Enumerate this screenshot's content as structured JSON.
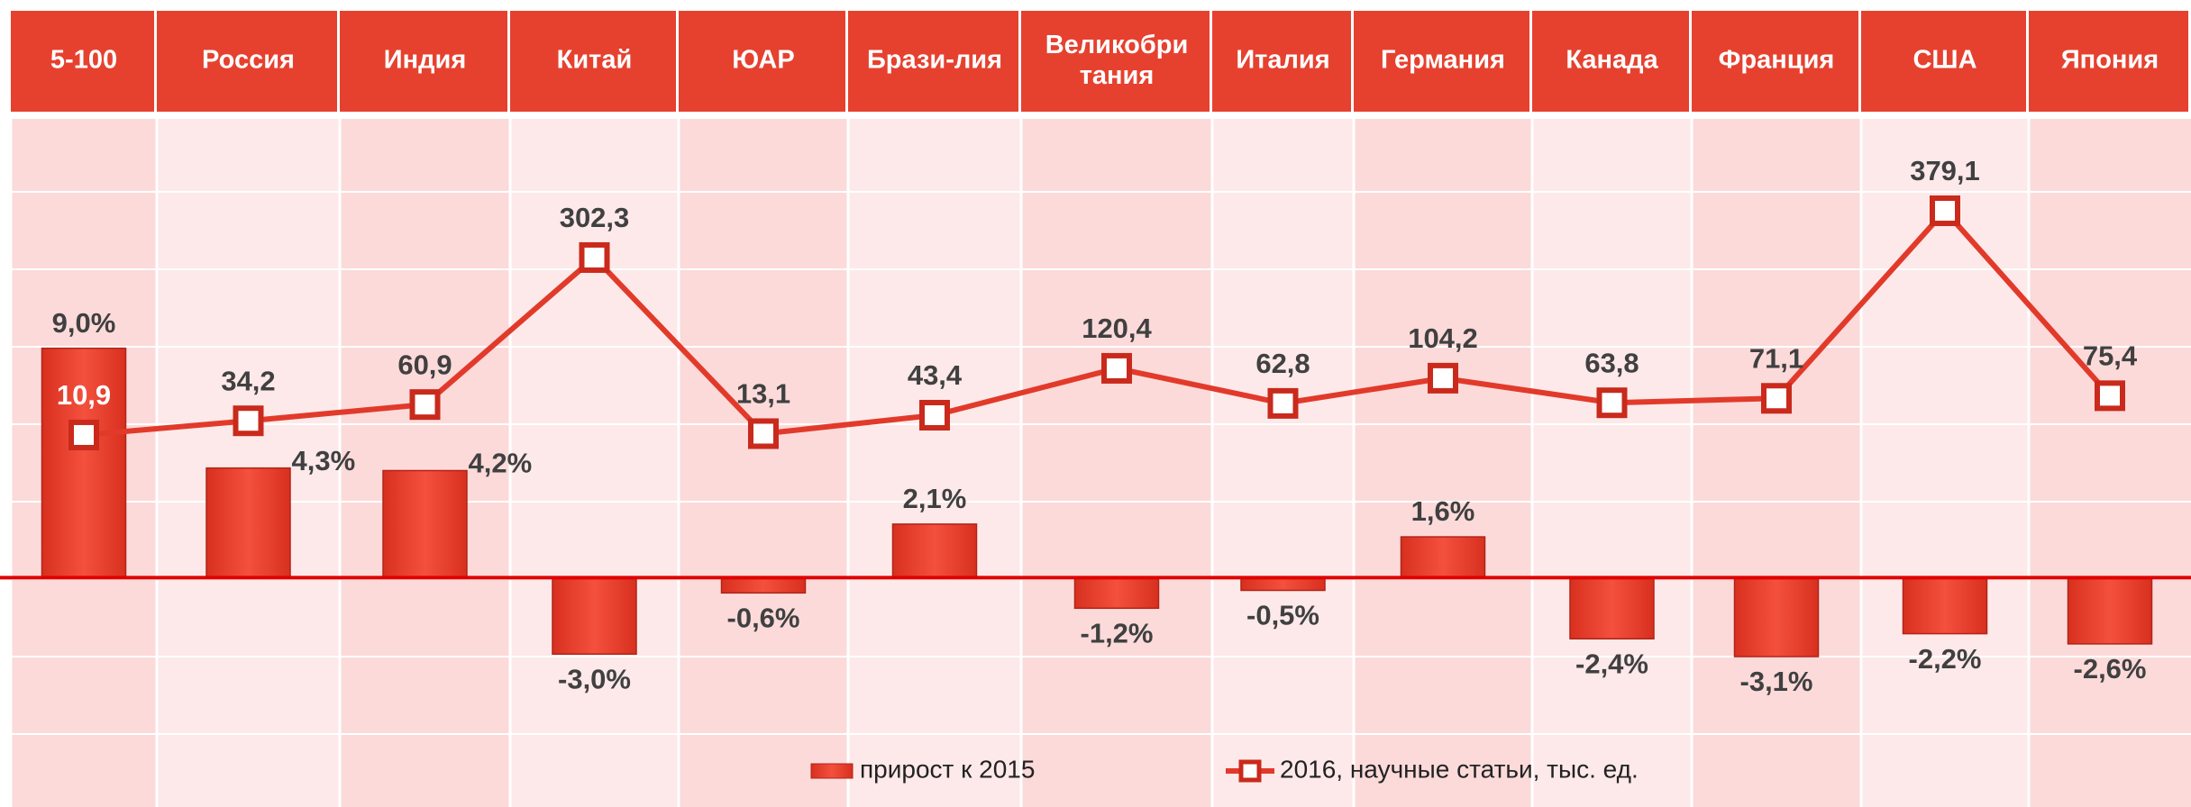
{
  "chart_data": {
    "type": "bar_line",
    "categories": [
      "5-100",
      "Россия",
      "Индия",
      "Китай",
      "ЮАР",
      "Брази-лия",
      "Великобри тания",
      "Италия",
      "Германия",
      "Канада",
      "Франция",
      "США",
      "Япония"
    ],
    "series": [
      {
        "name": "прирост к 2015",
        "color": "#ef4332",
        "type": "bar",
        "values": [
          9.0,
          4.3,
          4.2,
          -3.0,
          -0.6,
          2.1,
          -1.2,
          -0.5,
          1.6,
          -2.4,
          -3.1,
          -2.2,
          -2.6
        ],
        "value_labels": [
          "9,0%",
          "4,3%",
          "4,2%",
          "-3,0%",
          "-0,6%",
          "2,1%",
          "-1,2%",
          "-0,5%",
          "1,6%",
          "-2,4%",
          "-3,1%",
          "-2,2%",
          "-2,6%"
        ]
      },
      {
        "name": "2016, научные статьи, тыс. ед.",
        "color": "#e23a2a",
        "type": "line",
        "axis": "y2",
        "values": [
          10.9,
          34.2,
          60.9,
          302.3,
          13.1,
          43.4,
          120.4,
          62.8,
          104.2,
          63.8,
          71.1,
          379.1,
          75.4
        ],
        "value_labels": [
          "10,9",
          "34,2",
          "60,9",
          "302,3",
          "13,1",
          "43,4",
          "120,4",
          "62,8",
          "104,2",
          "63,8",
          "71,1",
          "379,1",
          "75,4"
        ]
      }
    ],
    "ylim": [
      -9,
      18
    ],
    "y2lim": [
      -600,
      530
    ]
  }
}
